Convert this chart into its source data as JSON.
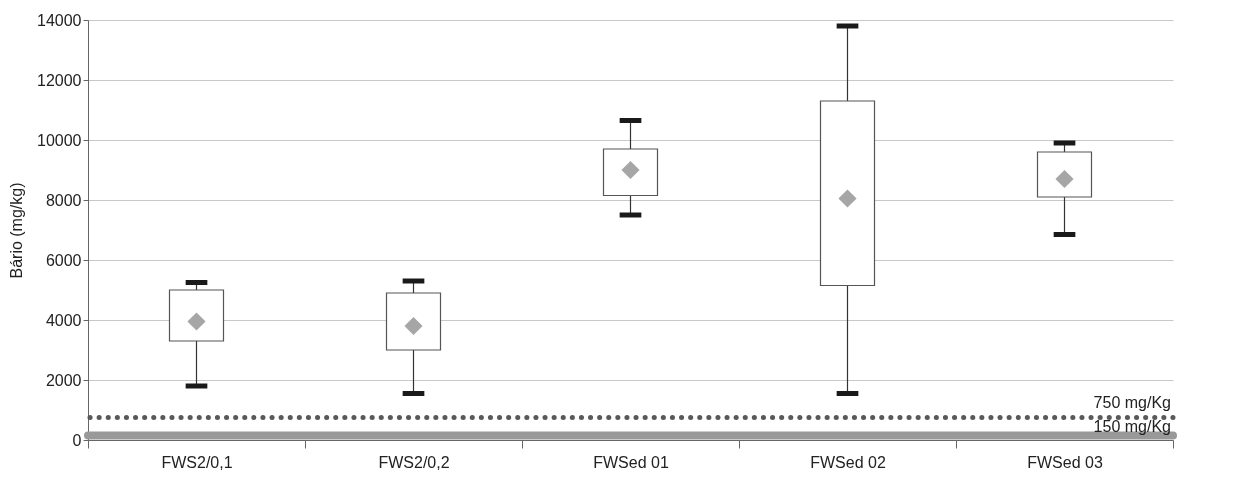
{
  "chart_data": {
    "type": "box",
    "ylabel": "Bário (mg/kg)",
    "categories": [
      "FWS2/0,1",
      "FWS2/0,2",
      "FWSed 01",
      "FWSed 02",
      "FWSed 03"
    ],
    "boxes": [
      {
        "low": 1800,
        "q1": 3300,
        "q3": 5000,
        "high": 5250,
        "mean": 3950
      },
      {
        "low": 1550,
        "q1": 3000,
        "q3": 4900,
        "high": 5300,
        "mean": 3800
      },
      {
        "low": 7500,
        "q1": 8150,
        "q3": 9700,
        "high": 10650,
        "mean": 9000
      },
      {
        "low": 1550,
        "q1": 5150,
        "q3": 11300,
        "high": 13800,
        "mean": 8050
      },
      {
        "low": 6850,
        "q1": 8100,
        "q3": 9600,
        "high": 9900,
        "mean": 8700
      }
    ],
    "ylim": [
      0,
      14000
    ],
    "yticks": [
      0,
      2000,
      4000,
      6000,
      8000,
      10000,
      12000,
      14000
    ],
    "grid": "y",
    "marker": "diamond",
    "ref_lines": [
      {
        "axis": "y",
        "value": 750,
        "label": "750 mg/Kg",
        "color": "#595959",
        "line_style": "dotted"
      },
      {
        "axis": "y",
        "value": 150,
        "label": "150 mg/Kg",
        "color": "#999999",
        "line_style": "solid"
      }
    ]
  }
}
